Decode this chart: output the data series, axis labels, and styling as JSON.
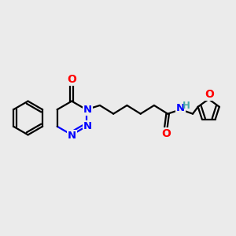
{
  "bg_color": "#ebebeb",
  "bond_color": "#000000",
  "N_color": "#0000ff",
  "O_color": "#ff0000",
  "H_color": "#48a8a8",
  "line_width": 1.6,
  "dbo": 0.006,
  "fig_width": 3.0,
  "fig_height": 3.0,
  "xlim": [
    0,
    1
  ],
  "ylim": [
    0,
    1
  ]
}
